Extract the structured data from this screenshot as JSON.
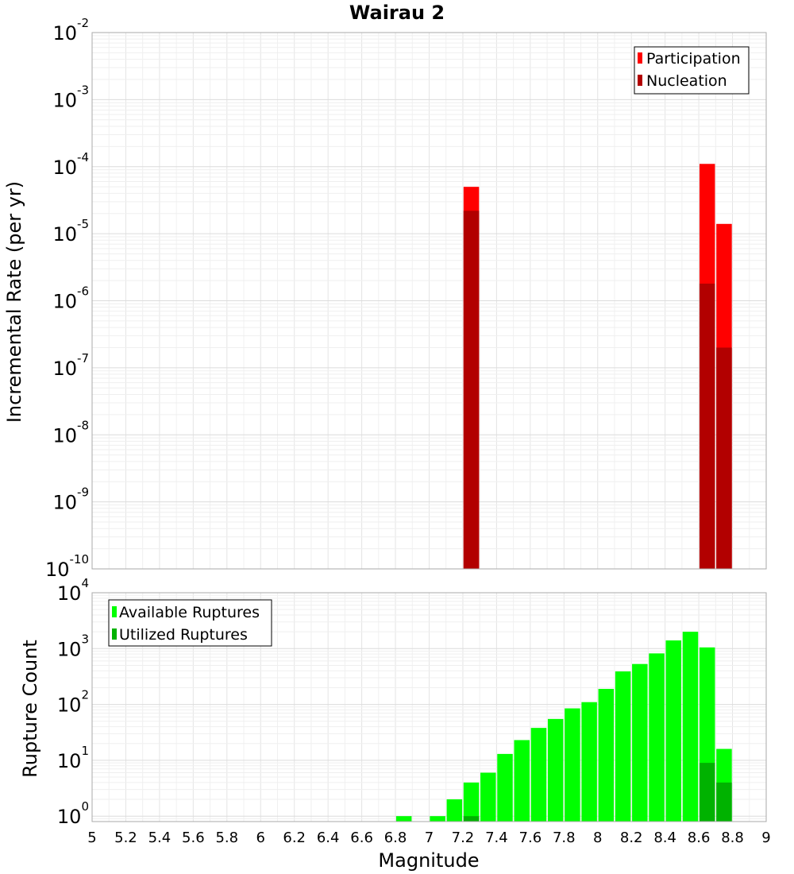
{
  "chart_data": [
    {
      "type": "bar",
      "title": "Wairau 2",
      "ylabel": "Incremental Rate (per yr)",
      "xlabel": "",
      "yscale": "log",
      "ylim": [
        1e-10,
        0.01
      ],
      "xlim": [
        5,
        9
      ],
      "y_tick_exponents": [
        "-10",
        "-9",
        "-8",
        "-7",
        "-6",
        "-5",
        "-4",
        "-3",
        "-2"
      ],
      "legend_position": "top-right",
      "grid": true,
      "series": [
        {
          "name": "Participation",
          "color": "#ff0000",
          "x": [
            7.25,
            8.65,
            8.75
          ],
          "values": [
            5e-05,
            0.00011,
            1.4e-05
          ]
        },
        {
          "name": "Nucleation",
          "color": "#b20000",
          "x": [
            7.25,
            8.65,
            8.75
          ],
          "values": [
            2.2e-05,
            1.8e-06,
            2e-07
          ]
        }
      ]
    },
    {
      "type": "bar",
      "title": "",
      "ylabel": "Rupture Count",
      "xlabel": "Magnitude",
      "yscale": "log",
      "ylim": [
        0.8,
        10000
      ],
      "xlim": [
        5,
        9
      ],
      "y_tick_exponents": [
        "0",
        "1",
        "2",
        "3",
        "4"
      ],
      "x_ticks": [
        "5",
        "5.2",
        "5.4",
        "5.6",
        "5.8",
        "6",
        "6.2",
        "6.4",
        "6.6",
        "6.8",
        "7",
        "7.2",
        "7.4",
        "7.6",
        "7.8",
        "8",
        "8.2",
        "8.4",
        "8.6",
        "8.8",
        "9"
      ],
      "legend_position": "top-left",
      "grid": true,
      "series": [
        {
          "name": "Available Ruptures",
          "color": "#00ff00",
          "x": [
            6.85,
            7.05,
            7.15,
            7.25,
            7.35,
            7.45,
            7.55,
            7.65,
            7.75,
            7.85,
            7.95,
            8.05,
            8.15,
            8.25,
            8.35,
            8.45,
            8.55,
            8.65,
            8.75
          ],
          "values": [
            1,
            1,
            2,
            4,
            6,
            13,
            23,
            38,
            55,
            85,
            110,
            190,
            390,
            530,
            820,
            1400,
            2000,
            1050,
            16
          ]
        },
        {
          "name": "Utilized Ruptures",
          "color": "#00b200",
          "x": [
            7.25,
            8.65,
            8.75
          ],
          "values": [
            1,
            9,
            4
          ]
        }
      ]
    }
  ]
}
